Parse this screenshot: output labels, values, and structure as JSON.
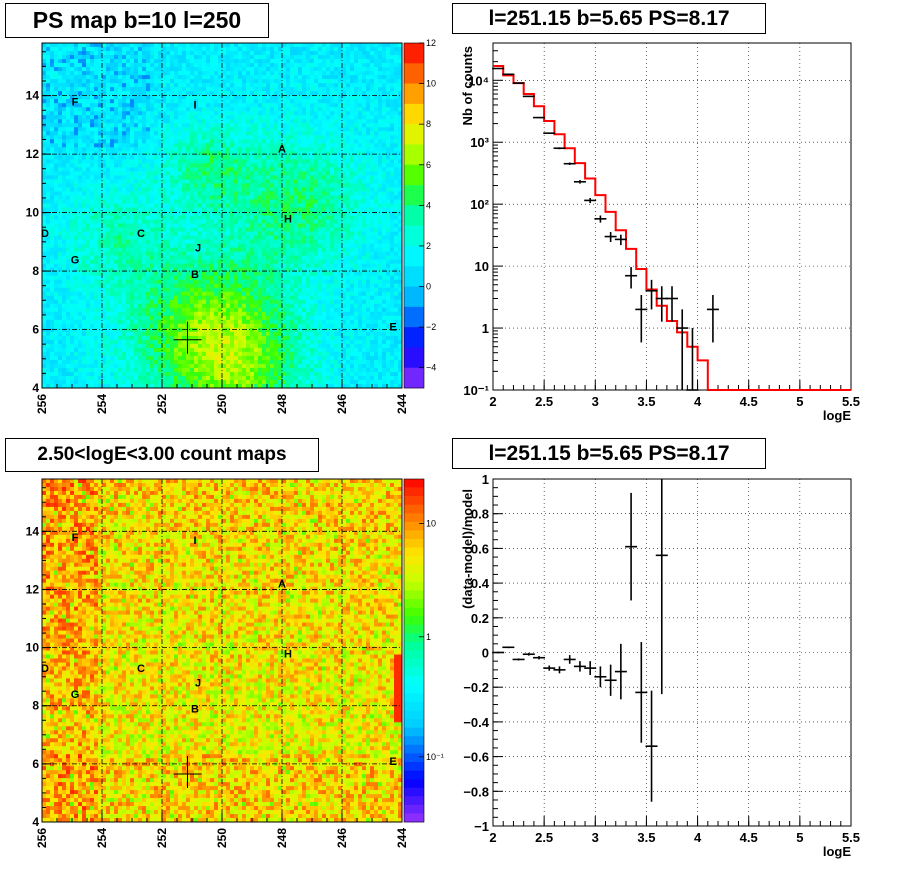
{
  "panels": {
    "ps_map": {
      "title": "PS map b=10 l=250",
      "x_ticks": [
        "256",
        "254",
        "252",
        "250",
        "248",
        "246",
        "244"
      ],
      "y_ticks": [
        "4",
        "6",
        "8",
        "10",
        "12",
        "14"
      ],
      "colorbar_ticks": [
        "12",
        "10",
        "8",
        "6",
        "4",
        "2",
        "0",
        "−2",
        "−4"
      ],
      "colorbar_range": [
        -5,
        12
      ],
      "source_labels": [
        {
          "name": "F",
          "l": 254.9,
          "b": 13.8
        },
        {
          "name": "I",
          "l": 250.9,
          "b": 13.7
        },
        {
          "name": "A",
          "l": 248.0,
          "b": 12.2
        },
        {
          "name": "H",
          "l": 247.8,
          "b": 9.8
        },
        {
          "name": "D",
          "l": 255.9,
          "b": 9.3
        },
        {
          "name": "C",
          "l": 252.7,
          "b": 9.3
        },
        {
          "name": "J",
          "l": 250.8,
          "b": 8.8
        },
        {
          "name": "G",
          "l": 254.9,
          "b": 8.4
        },
        {
          "name": "B",
          "l": 250.9,
          "b": 7.9
        },
        {
          "name": "E",
          "l": 244.3,
          "b": 6.1
        }
      ],
      "marker": {
        "l": 251.15,
        "b": 5.65
      }
    },
    "spectrum": {
      "title": "l=251.15 b=5.65 PS=8.17",
      "ylabel": "Nb of counts",
      "xlabel": "logE",
      "x_ticks": [
        "2",
        "2.5",
        "3",
        "3.5",
        "4",
        "4.5",
        "5",
        "5.5"
      ],
      "y_ticks": [
        "10⁻¹",
        "1",
        "10",
        "10²",
        "10³",
        "10⁴"
      ]
    },
    "count_map": {
      "title": "2.50<logE<3.00 count maps",
      "x_ticks": [
        "256",
        "254",
        "252",
        "250",
        "248",
        "246",
        "244"
      ],
      "y_ticks": [
        "4",
        "6",
        "8",
        "10",
        "12",
        "14"
      ],
      "colorbar_ticks": [
        "10",
        "1",
        "10⁻¹"
      ]
    },
    "residual": {
      "title": "l=251.15 b=5.65 PS=8.17",
      "ylabel": "(data-model)/model",
      "xlabel": "logE",
      "x_ticks": [
        "2",
        "2.5",
        "3",
        "3.5",
        "4",
        "4.5",
        "5",
        "5.5"
      ],
      "y_ticks": [
        "1",
        "0.8",
        "0.6",
        "0.4",
        "0.2",
        "0",
        "−0.2",
        "−0.4",
        "−0.6",
        "−0.8",
        "−1"
      ]
    }
  },
  "chart_data": [
    {
      "type": "heatmap",
      "title": "PS map b=10 l=250",
      "xlim": [
        256,
        244
      ],
      "ylim": [
        4,
        15.8
      ],
      "zlim": [
        -5,
        12
      ],
      "point_marker": {
        "l": 251.15,
        "b": 5.65
      }
    },
    {
      "type": "line",
      "title": "l=251.15 b=5.65 PS=8.17",
      "xlabel": "logE",
      "ylabel": "Nb of counts",
      "xlim": [
        2,
        5.5
      ],
      "ylim": [
        0.1,
        40000
      ],
      "log_y": true,
      "grid": true,
      "series": [
        {
          "style": "points-errorbars",
          "color": "#000000",
          "x": [
            2.05,
            2.15,
            2.25,
            2.35,
            2.45,
            2.55,
            2.65,
            2.75,
            2.85,
            2.95,
            3.05,
            3.15,
            3.25,
            3.35,
            3.45,
            3.55,
            3.65,
            3.75,
            3.85,
            3.95,
            4.15
          ],
          "y": [
            15500,
            12500,
            9000,
            5500,
            2500,
            1400,
            800,
            450,
            230,
            115,
            58,
            30,
            27,
            7,
            2,
            4,
            3,
            3,
            1,
            0,
            2
          ]
        },
        {
          "style": "step",
          "color": "#ff0000",
          "x": [
            2.0,
            2.1,
            2.2,
            2.3,
            2.4,
            2.5,
            2.6,
            2.7,
            2.8,
            2.9,
            3.0,
            3.1,
            3.2,
            3.3,
            3.4,
            3.5,
            3.6,
            3.7,
            3.8,
            3.9,
            4.0,
            4.1
          ],
          "y": [
            17000,
            12000,
            9000,
            6000,
            3800,
            2200,
            1350,
            800,
            460,
            260,
            140,
            75,
            38,
            19,
            9,
            4.2,
            2.3,
            1.3,
            0.85,
            0.5,
            0.3,
            0.1
          ]
        }
      ]
    },
    {
      "type": "heatmap",
      "title": "2.50<logE<3.00 count maps",
      "xlim": [
        256,
        244
      ],
      "ylim": [
        4,
        15.8
      ],
      "log_z": true,
      "point_marker": {
        "l": 251.15,
        "b": 5.65
      }
    },
    {
      "type": "scatter",
      "title": "l=251.15 b=5.65 PS=8.17",
      "xlabel": "logE",
      "ylabel": "(data-model)/model",
      "xlim": [
        2,
        5.5
      ],
      "ylim": [
        -1,
        1
      ],
      "grid": true,
      "series": [
        {
          "style": "points-errorbars",
          "color": "#000000",
          "x": [
            2.05,
            2.15,
            2.25,
            2.35,
            2.45,
            2.55,
            2.65,
            2.75,
            2.85,
            2.95,
            3.05,
            3.15,
            3.25,
            3.35,
            3.45,
            3.55,
            3.65
          ],
          "y": [
            0.0,
            0.03,
            -0.04,
            -0.01,
            -0.03,
            -0.09,
            -0.1,
            -0.04,
            -0.08,
            -0.09,
            -0.14,
            -0.16,
            -0.11,
            0.61,
            -0.23,
            -0.54,
            0.56
          ],
          "err": [
            0.005,
            0.005,
            0.006,
            0.008,
            0.01,
            0.015,
            0.02,
            0.025,
            0.03,
            0.04,
            0.06,
            0.09,
            0.16,
            0.31,
            0.29,
            0.32,
            0.8
          ]
        }
      ]
    }
  ]
}
